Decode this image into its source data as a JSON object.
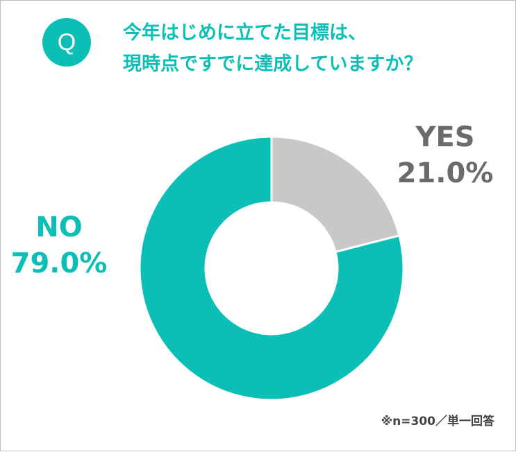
{
  "badge": {
    "letter": "Q"
  },
  "question": {
    "line1": "今年はじめに立てた目標は、",
    "line2": "現時点ですでに達成していますか？"
  },
  "note": "※n=300／単一回答",
  "colors": {
    "accent": "#0bbfb7",
    "gray_slice": "#c8c8c8",
    "gray_label": "#6b6b6b"
  },
  "chart_data": {
    "type": "pie",
    "donut": true,
    "slices": [
      {
        "name": "YES",
        "value": 21.0,
        "label": "21.0%",
        "color": "#c8c8c8",
        "label_color": "#6b6b6b"
      },
      {
        "name": "NO",
        "value": 79.0,
        "label": "79.0%",
        "color": "#0bbfb7",
        "label_color": "#0bbfb7"
      }
    ]
  }
}
